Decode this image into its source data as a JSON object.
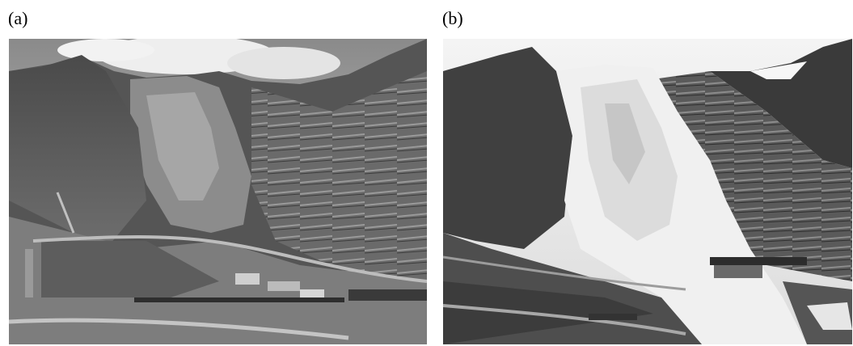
{
  "panels": [
    {
      "label": "(a)",
      "description_icon": "photo-mine-glacier-before"
    },
    {
      "label": "(b)",
      "description_icon": "photo-mine-glacier-after"
    }
  ]
}
